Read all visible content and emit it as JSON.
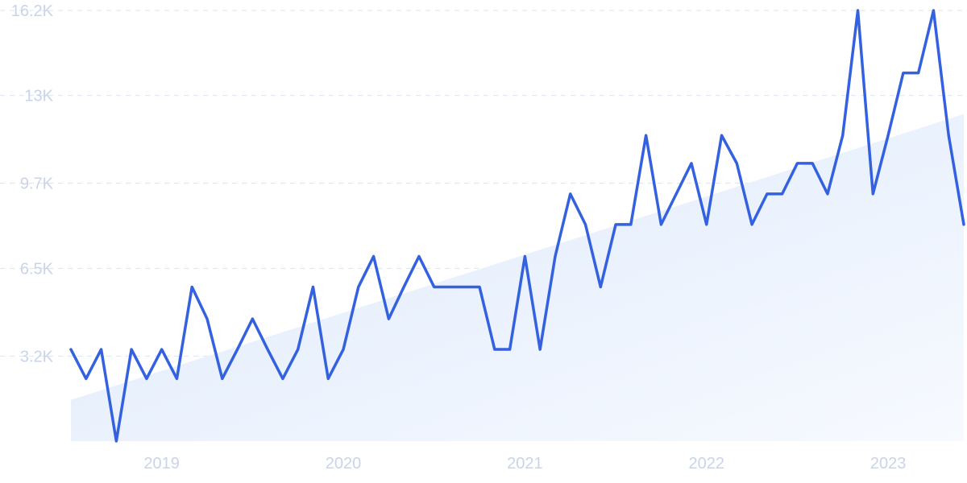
{
  "chart_data": {
    "type": "line",
    "title": "",
    "xlabel": "",
    "ylabel": "",
    "ylim": [
      0,
      16200
    ],
    "grid": true,
    "y_ticks": [
      {
        "value": 3200,
        "label": "3.2K"
      },
      {
        "value": 6500,
        "label": "6.5K"
      },
      {
        "value": 9700,
        "label": "9.7K"
      },
      {
        "value": 13000,
        "label": "13K"
      },
      {
        "value": 16200,
        "label": "16.2K"
      }
    ],
    "x_ticks": [
      {
        "value": "2019-01",
        "label": "2019"
      },
      {
        "value": "2020-01",
        "label": "2020"
      },
      {
        "value": "2021-01",
        "label": "2021"
      },
      {
        "value": "2022-01",
        "label": "2022"
      },
      {
        "value": "2023-01",
        "label": "2023"
      }
    ],
    "x": [
      "2018-07",
      "2018-08",
      "2018-09",
      "2018-10",
      "2018-11",
      "2018-12",
      "2019-01",
      "2019-02",
      "2019-03",
      "2019-04",
      "2019-05",
      "2019-06",
      "2019-07",
      "2019-08",
      "2019-09",
      "2019-10",
      "2019-11",
      "2019-12",
      "2020-01",
      "2020-02",
      "2020-03",
      "2020-04",
      "2020-05",
      "2020-06",
      "2020-07",
      "2020-08",
      "2020-09",
      "2020-10",
      "2020-11",
      "2020-12",
      "2021-01",
      "2021-02",
      "2021-03",
      "2021-04",
      "2021-05",
      "2021-06",
      "2021-07",
      "2021-08",
      "2021-09",
      "2021-10",
      "2021-11",
      "2021-12",
      "2022-01",
      "2022-02",
      "2022-03",
      "2022-04",
      "2022-05",
      "2022-06",
      "2022-07",
      "2022-08",
      "2022-09",
      "2022-10",
      "2022-11",
      "2022-12",
      "2023-01",
      "2023-02",
      "2023-03",
      "2023-04",
      "2023-05",
      "2023-06"
    ],
    "series": [
      {
        "values": [
          3450,
          2350,
          3450,
          0,
          3450,
          2350,
          3450,
          2350,
          5800,
          4600,
          2350,
          3450,
          4600,
          3450,
          2350,
          3450,
          5800,
          2350,
          3450,
          5800,
          6950,
          4600,
          5800,
          6950,
          5800,
          5800,
          5800,
          5800,
          3450,
          3450,
          6950,
          3450,
          6950,
          9300,
          8150,
          5800,
          8150,
          8150,
          11500,
          8150,
          9300,
          10450,
          8150,
          11500,
          10450,
          8150,
          9300,
          9300,
          10450,
          10450,
          9300,
          11500,
          16200,
          9300,
          11500,
          13850,
          13850,
          16200,
          11500,
          8150
        ]
      }
    ],
    "trend": {
      "start": 1550,
      "end": 12300
    },
    "colors": {
      "line": "#3361e0",
      "area_top": "#dde9fb",
      "area_bottom": "#f7faff"
    }
  }
}
